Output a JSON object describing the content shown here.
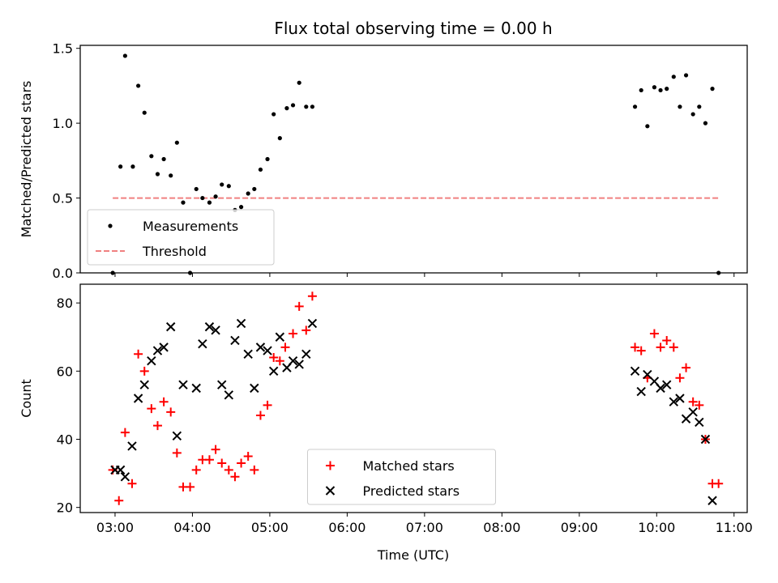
{
  "chart_data": {
    "title": "Flux total observing time = 0.00 h",
    "xlabel": "Time (UTC)",
    "xlim": [
      2.55,
      11.17
    ],
    "xticks": [
      3,
      4,
      5,
      6,
      7,
      8,
      9,
      10,
      11
    ],
    "xtick_labels": [
      "03:00",
      "04:00",
      "05:00",
      "06:00",
      "07:00",
      "08:00",
      "09:00",
      "10:00",
      "11:00"
    ],
    "panels": [
      {
        "type": "scatter",
        "ylabel": "Matched/Predicted stars",
        "ylim": [
          0.0,
          1.52
        ],
        "yticks": [
          0.0,
          0.5,
          1.0,
          1.5
        ],
        "ytick_labels": [
          "0.0",
          "0.5",
          "1.0",
          "1.5"
        ],
        "legend_position": "lower-left",
        "legend": [
          {
            "label": "Measurements",
            "marker": "dot",
            "color": "#000000"
          },
          {
            "label": "Threshold",
            "marker": "dashed-line",
            "color": "#f08080"
          }
        ],
        "threshold": {
          "value": 0.5,
          "x_range": [
            2.97,
            10.8
          ],
          "color": "#f08080"
        },
        "series": [
          {
            "name": "Measurements",
            "color": "#000000",
            "points": [
              [
                2.97,
                0.0
              ],
              [
                3.07,
                0.71
              ],
              [
                3.13,
                1.45
              ],
              [
                3.23,
                0.71
              ],
              [
                3.3,
                1.25
              ],
              [
                3.38,
                1.07
              ],
              [
                3.47,
                0.78
              ],
              [
                3.55,
                0.66
              ],
              [
                3.63,
                0.76
              ],
              [
                3.72,
                0.65
              ],
              [
                3.8,
                0.87
              ],
              [
                3.88,
                0.47
              ],
              [
                3.97,
                0.0
              ],
              [
                4.05,
                0.56
              ],
              [
                4.13,
                0.5
              ],
              [
                4.22,
                0.47
              ],
              [
                4.3,
                0.51
              ],
              [
                4.38,
                0.59
              ],
              [
                4.47,
                0.58
              ],
              [
                4.55,
                0.42
              ],
              [
                4.63,
                0.44
              ],
              [
                4.72,
                0.53
              ],
              [
                4.8,
                0.56
              ],
              [
                4.88,
                0.69
              ],
              [
                4.97,
                0.76
              ],
              [
                5.05,
                1.06
              ],
              [
                5.13,
                0.9
              ],
              [
                5.22,
                1.1
              ],
              [
                5.3,
                1.12
              ],
              [
                5.38,
                1.27
              ],
              [
                5.47,
                1.11
              ],
              [
                5.55,
                1.11
              ],
              [
                9.72,
                1.11
              ],
              [
                9.8,
                1.22
              ],
              [
                9.88,
                0.98
              ],
              [
                9.97,
                1.24
              ],
              [
                10.05,
                1.22
              ],
              [
                10.13,
                1.23
              ],
              [
                10.22,
                1.31
              ],
              [
                10.3,
                1.11
              ],
              [
                10.38,
                1.32
              ],
              [
                10.47,
                1.06
              ],
              [
                10.55,
                1.11
              ],
              [
                10.63,
                1.0
              ],
              [
                10.72,
                1.23
              ],
              [
                10.8,
                0.0
              ]
            ]
          }
        ]
      },
      {
        "type": "scatter",
        "ylabel": "Count",
        "ylim": [
          18.5,
          85.5
        ],
        "yticks": [
          20,
          40,
          60,
          80
        ],
        "ytick_labels": [
          "20",
          "40",
          "60",
          "80"
        ],
        "legend_position": "lower-center",
        "legend": [
          {
            "label": "Matched stars",
            "marker": "plus",
            "color": "#ff0000"
          },
          {
            "label": "Predicted stars",
            "marker": "x",
            "color": "#000000"
          }
        ],
        "series": [
          {
            "name": "Matched stars",
            "marker": "plus",
            "color": "#ff0000",
            "points": [
              [
                2.97,
                31
              ],
              [
                3.05,
                22
              ],
              [
                3.13,
                42
              ],
              [
                3.22,
                27
              ],
              [
                3.3,
                65
              ],
              [
                3.38,
                60
              ],
              [
                3.47,
                49
              ],
              [
                3.55,
                44
              ],
              [
                3.63,
                51
              ],
              [
                3.72,
                48
              ],
              [
                3.8,
                36
              ],
              [
                3.88,
                26
              ],
              [
                3.97,
                26
              ],
              [
                4.05,
                31
              ],
              [
                4.13,
                34
              ],
              [
                4.22,
                34
              ],
              [
                4.3,
                37
              ],
              [
                4.38,
                33
              ],
              [
                4.47,
                31
              ],
              [
                4.55,
                29
              ],
              [
                4.63,
                33
              ],
              [
                4.72,
                35
              ],
              [
                4.8,
                31
              ],
              [
                4.88,
                47
              ],
              [
                4.97,
                50
              ],
              [
                5.05,
                64
              ],
              [
                5.13,
                63
              ],
              [
                5.2,
                67
              ],
              [
                5.3,
                71
              ],
              [
                5.38,
                79
              ],
              [
                5.47,
                72
              ],
              [
                5.55,
                82
              ],
              [
                9.72,
                67
              ],
              [
                9.8,
                66
              ],
              [
                9.88,
                58
              ],
              [
                9.97,
                71
              ],
              [
                10.05,
                67
              ],
              [
                10.13,
                69
              ],
              [
                10.22,
                67
              ],
              [
                10.3,
                58
              ],
              [
                10.38,
                61
              ],
              [
                10.47,
                51
              ],
              [
                10.55,
                50
              ],
              [
                10.63,
                40
              ],
              [
                10.72,
                27
              ],
              [
                10.8,
                27
              ]
            ]
          },
          {
            "name": "Predicted stars",
            "marker": "x",
            "color": "#000000",
            "points": [
              [
                3.0,
                31
              ],
              [
                3.07,
                31
              ],
              [
                3.13,
                29
              ],
              [
                3.22,
                38
              ],
              [
                3.3,
                52
              ],
              [
                3.38,
                56
              ],
              [
                3.47,
                63
              ],
              [
                3.55,
                66
              ],
              [
                3.63,
                67
              ],
              [
                3.72,
                73
              ],
              [
                3.8,
                41
              ],
              [
                3.88,
                56
              ],
              [
                4.05,
                55
              ],
              [
                4.13,
                68
              ],
              [
                4.22,
                73
              ],
              [
                4.3,
                72
              ],
              [
                4.38,
                56
              ],
              [
                4.47,
                53
              ],
              [
                4.55,
                69
              ],
              [
                4.63,
                74
              ],
              [
                4.72,
                65
              ],
              [
                4.8,
                55
              ],
              [
                4.88,
                67
              ],
              [
                4.97,
                66
              ],
              [
                5.05,
                60
              ],
              [
                5.13,
                70
              ],
              [
                5.22,
                61
              ],
              [
                5.3,
                63
              ],
              [
                5.38,
                62
              ],
              [
                5.47,
                65
              ],
              [
                5.55,
                74
              ],
              [
                9.72,
                60
              ],
              [
                9.8,
                54
              ],
              [
                9.88,
                59
              ],
              [
                9.97,
                57
              ],
              [
                10.05,
                55
              ],
              [
                10.13,
                56
              ],
              [
                10.22,
                51
              ],
              [
                10.3,
                52
              ],
              [
                10.38,
                46
              ],
              [
                10.47,
                48
              ],
              [
                10.55,
                45
              ],
              [
                10.63,
                40
              ],
              [
                10.72,
                22
              ]
            ]
          }
        ]
      }
    ]
  }
}
